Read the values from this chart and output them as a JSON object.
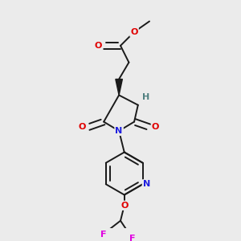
{
  "background_color": "#ebebeb",
  "bond_color": "#1a1a1a",
  "atom_colors": {
    "O": "#e00000",
    "N": "#2020e0",
    "H": "#508080",
    "F": "#e000e0",
    "C": "#1a1a1a"
  },
  "figsize": [
    3.0,
    3.0
  ],
  "dpi": 100
}
